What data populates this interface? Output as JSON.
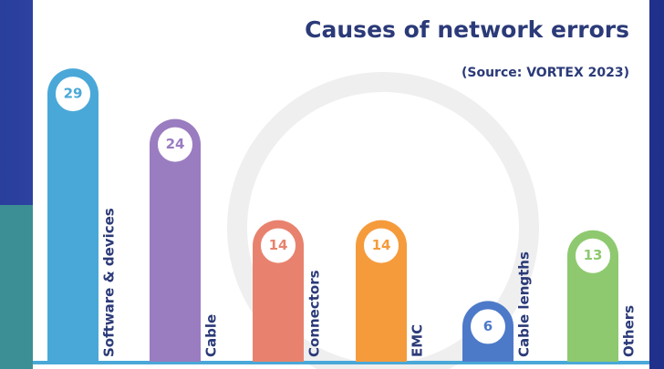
{
  "chart_data": {
    "type": "bar",
    "title": "Causes of network errors",
    "subtitle": "(Source: VORTEX 2023)",
    "categories": [
      "Software & devices",
      "Cable",
      "Connectors",
      "EMC",
      "Cable lengths",
      "Others"
    ],
    "values": [
      29,
      24,
      14,
      14,
      6,
      13
    ],
    "colors": [
      "#4aa8d8",
      "#9a7cc0",
      "#e8826e",
      "#f59b3c",
      "#4d79c9",
      "#8ec96f"
    ],
    "ylim": [
      0,
      30
    ]
  }
}
